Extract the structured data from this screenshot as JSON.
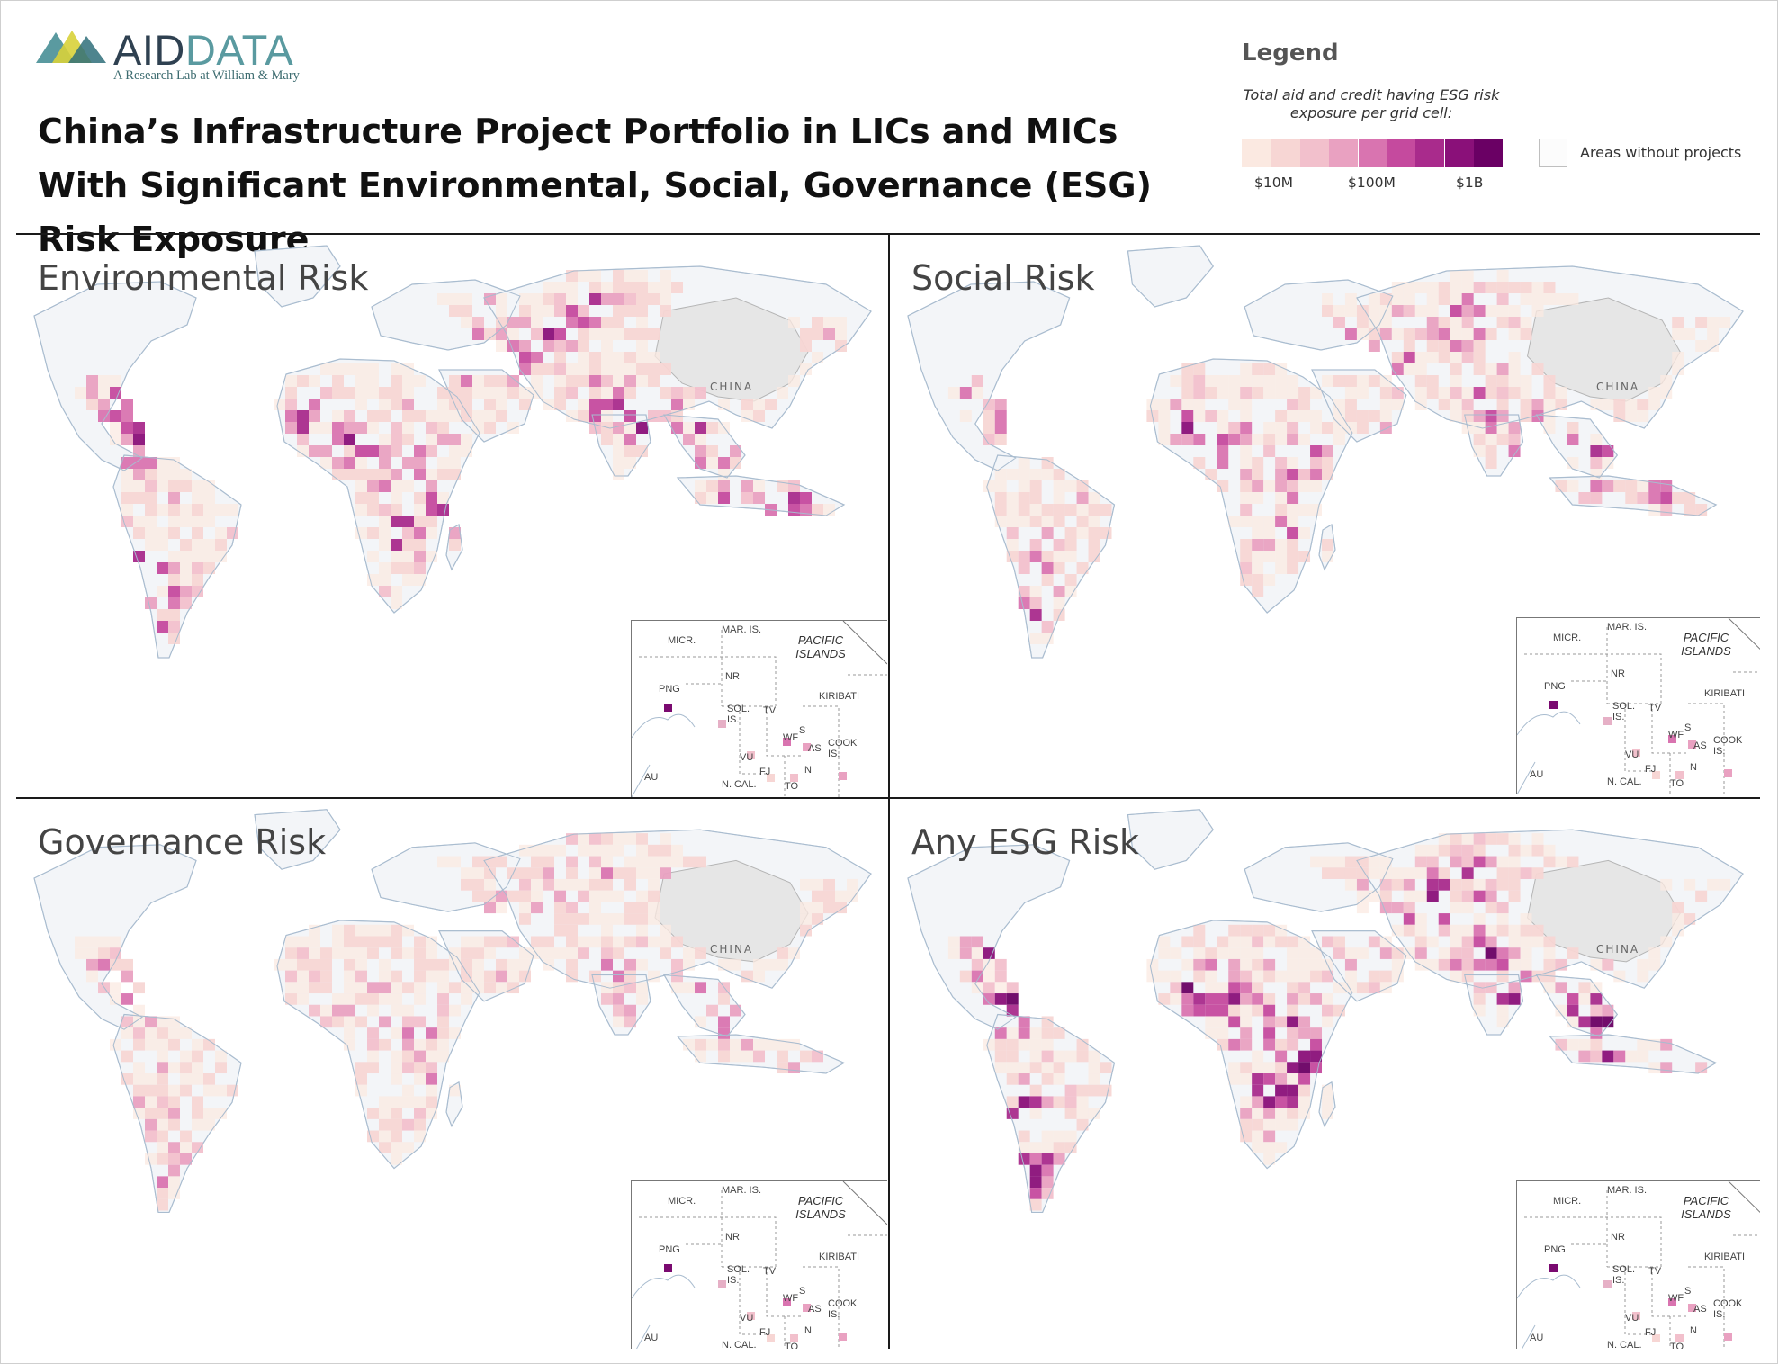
{
  "logo": {
    "text_main": "AID",
    "text_dim": "DATA",
    "tagline": "A Research Lab at William & Mary"
  },
  "title": "China’s Infrastructure Project Portfolio in LICs and MICs With Significant Environmental, Social, Governance (ESG) Risk Exposure",
  "legend": {
    "title": "Legend",
    "caption": "Total aid and credit having ESG risk exposure per grid cell:",
    "scale_labels": [
      "$10M",
      "$100M",
      "$1B"
    ],
    "no_projects_label": "Areas without projects",
    "colors": [
      "#fbe9e1",
      "#f7d6d4",
      "#f2c0cc",
      "#e9a1c1",
      "#d974b0",
      "#c54a9e",
      "#a92b8c",
      "#8a1079",
      "#6a0064"
    ]
  },
  "panels": [
    {
      "title": "Environmental Risk",
      "intensity": 1.0
    },
    {
      "title": "Social Risk",
      "intensity": 0.8
    },
    {
      "title": "Governance Risk",
      "intensity": 0.55
    },
    {
      "title": "Any ESG Risk",
      "intensity": 1.2
    }
  ],
  "map_labels": {
    "china": "CHINA"
  },
  "inset": {
    "title": "PACIFIC ISLANDS",
    "labels": [
      "MICR.",
      "MAR. IS.",
      "PNG",
      "NR",
      "KIRIBATI",
      "SOL. IS.",
      "TV",
      "WF",
      "S",
      "AS",
      "COOK IS.",
      "VU",
      "FJ",
      "N",
      "AU",
      "N. CAL.",
      "TO"
    ]
  }
}
